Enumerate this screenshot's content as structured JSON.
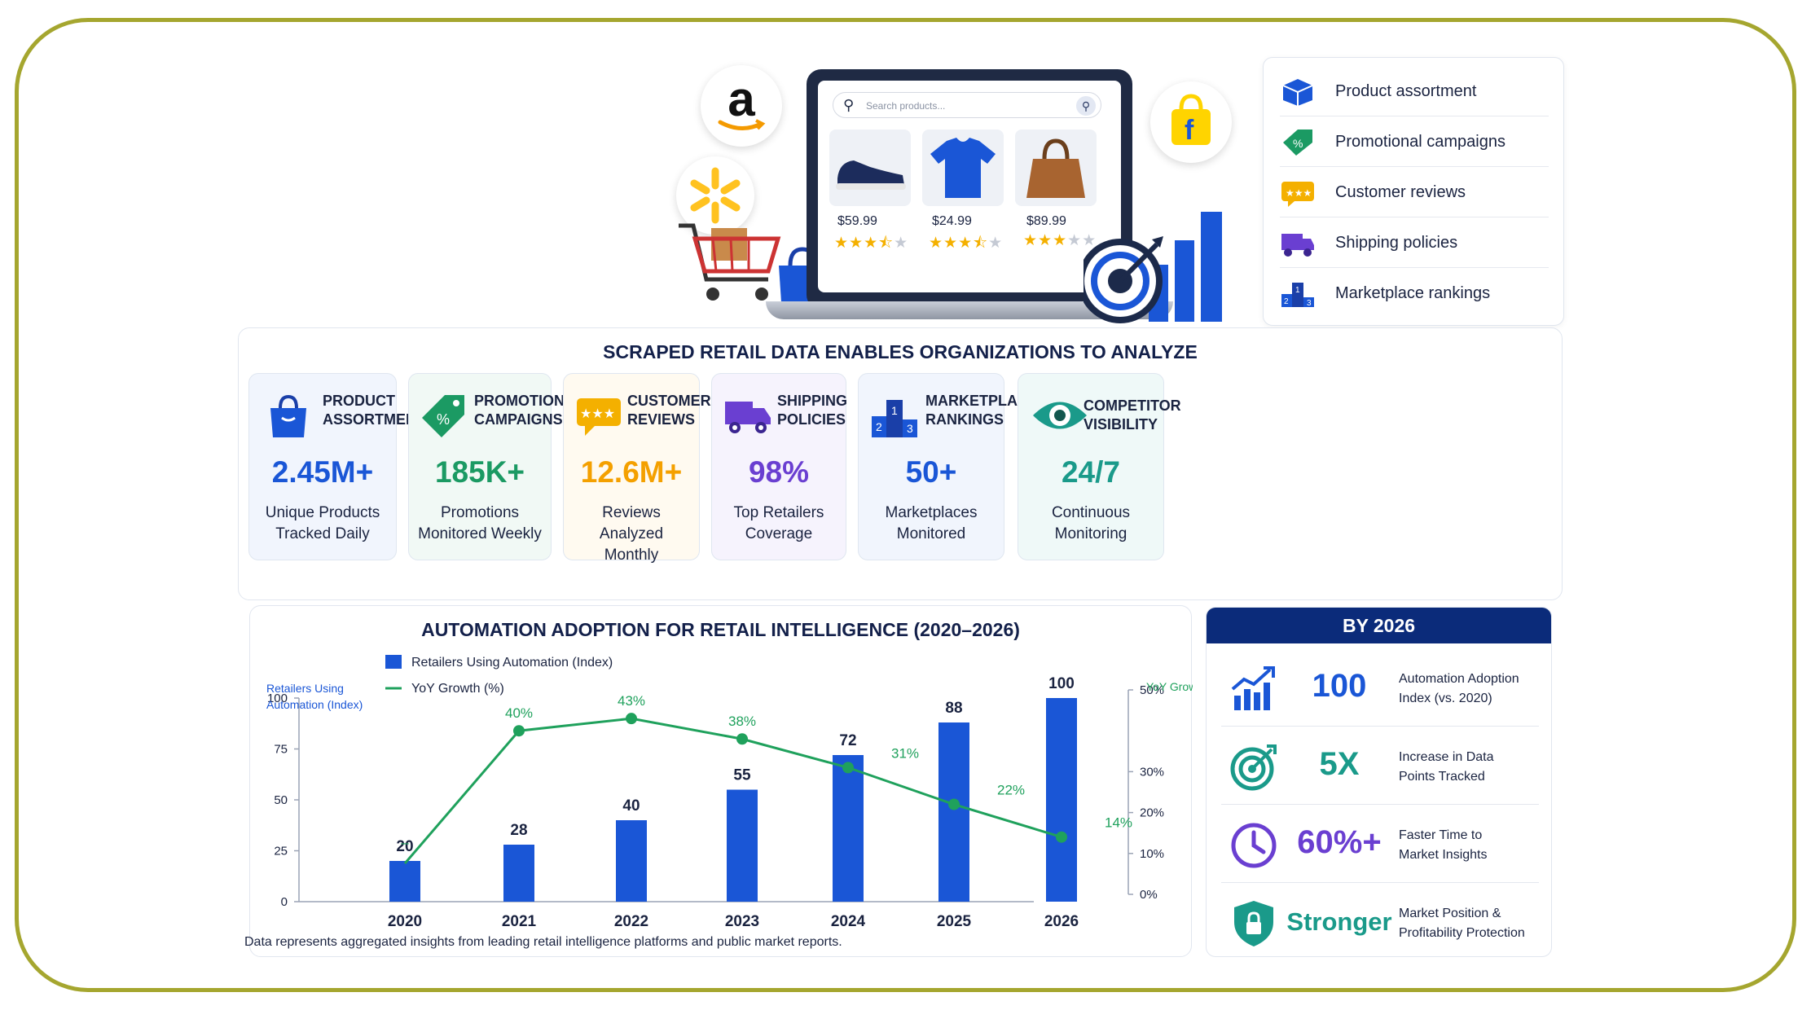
{
  "hero": {
    "search_placeholder": "Search products...",
    "products": [
      {
        "icon": "sneaker-icon",
        "price": "$59.99",
        "rating": 3.5
      },
      {
        "icon": "tshirt-icon",
        "price": "$24.99",
        "rating": 3.5
      },
      {
        "icon": "handbag-icon",
        "price": "$89.99",
        "rating": 3
      }
    ],
    "logos": [
      "amazon-logo",
      "walmart-logo",
      "flipkart-logo"
    ]
  },
  "feature_list": [
    {
      "icon": "cube-icon",
      "label": "Product assortment",
      "color": "#1a56d6"
    },
    {
      "icon": "tag-icon",
      "label": "Promotional campaigns",
      "color": "#1b9a63"
    },
    {
      "icon": "star-bubble-icon",
      "label": "Customer reviews",
      "color": "#f4b000"
    },
    {
      "icon": "truck-icon",
      "label": "Shipping policies",
      "color": "#6a3fd1"
    },
    {
      "icon": "podium-icon",
      "label": "Marketplace rankings",
      "color": "#1a56d6"
    }
  ],
  "analysis": {
    "title": "SCRAPED RETAIL DATA ENABLES ORGANIZATIONS TO ANALYZE",
    "cards": [
      {
        "icon": "shopping-bag-icon",
        "title": "PRODUCT ASSORTMENT",
        "value": "2.45M+",
        "sub1": "Unique Products",
        "sub2": "Tracked Daily",
        "color": "#1a56d6",
        "bg": "#f1f5fd"
      },
      {
        "icon": "tag-icon",
        "title": "PROMOTIONAL CAMPAIGNS",
        "value": "185K+",
        "sub1": "Promotions",
        "sub2": "Monitored Weekly",
        "color": "#1b9a63",
        "bg": "#f1f9f5"
      },
      {
        "icon": "star-bubble-icon",
        "title": "CUSTOMER REVIEWS",
        "value": "12.6M+",
        "sub1": "Reviews Analyzed",
        "sub2": "Monthly",
        "color": "#f4a000",
        "bg": "#fffaf0"
      },
      {
        "icon": "truck-icon",
        "title": "SHIPPING POLICIES",
        "value": "98%",
        "sub1": "Top Retailers",
        "sub2": "Coverage",
        "color": "#6a3fd1",
        "bg": "#f6f3fd"
      },
      {
        "icon": "podium-icon",
        "title": "MARKETPLACE RANKINGS",
        "value": "50+",
        "sub1": "Marketplaces",
        "sub2": "Monitored",
        "color": "#1a56d6",
        "bg": "#f1f5fd"
      },
      {
        "icon": "eye-icon",
        "title": "COMPETITOR VISIBILITY",
        "value": "24/7",
        "sub1": "Continuous",
        "sub2": "Monitoring",
        "color": "#1a9a8a",
        "bg": "#eff9f8"
      }
    ]
  },
  "chart_data": {
    "type": "bar",
    "title": "AUTOMATION ADOPTION FOR RETAIL INTELLIGENCE (2020–2026)",
    "categories": [
      "2020",
      "2021",
      "2022",
      "2023",
      "2024",
      "2025",
      "2026"
    ],
    "y_left_label_line1": "Retailers Using",
    "y_left_label_line2": "Automation (Index)",
    "y_right_label": "YoY Growth (%)",
    "ylim_left": [
      0,
      100
    ],
    "ylim_right": [
      0,
      50
    ],
    "left_ticks": [
      "0",
      "25",
      "50",
      "75",
      "100"
    ],
    "right_ticks": [
      "0%",
      "10%",
      "20%",
      "30%",
      "50%"
    ],
    "series": [
      {
        "name": "Retailers Using Automation (Index)",
        "kind": "bar",
        "color": "#1a56d6",
        "values": [
          20,
          28,
          40,
          55,
          72,
          88,
          100
        ],
        "labels": [
          "20",
          "28",
          "40",
          "55",
          "72",
          "88",
          "100"
        ]
      },
      {
        "name": "YoY Growth (%)",
        "kind": "line",
        "color": "#1fa15c",
        "values": [
          null,
          40,
          43,
          38,
          31,
          22,
          14
        ],
        "labels": [
          "–",
          "40%",
          "43%",
          "38%",
          "31%",
          "22%",
          "14%"
        ]
      }
    ],
    "legend": "top-left",
    "grid": false
  },
  "summary": {
    "title": "BY 2026",
    "rows": [
      {
        "icon": "growth-chart-icon",
        "value": "100",
        "desc1": "Automation Adoption",
        "desc2": "Index (vs. 2020)",
        "color": "#1a56d6"
      },
      {
        "icon": "target-icon",
        "value": "5X",
        "desc1": "Increase in Data",
        "desc2": "Points Tracked",
        "color": "#1a9a8a"
      },
      {
        "icon": "clock-icon",
        "value": "60%+",
        "desc1": "Faster Time to",
        "desc2": "Market Insights",
        "color": "#6a3fd1"
      },
      {
        "icon": "shield-lock-icon",
        "value": "Stronger",
        "desc1": "Market Position &",
        "desc2": "Profitability Protection",
        "color": "#1a9a8a"
      }
    ]
  },
  "footnote": "Data represents aggregated insights from leading retail intelligence platforms and public market reports."
}
